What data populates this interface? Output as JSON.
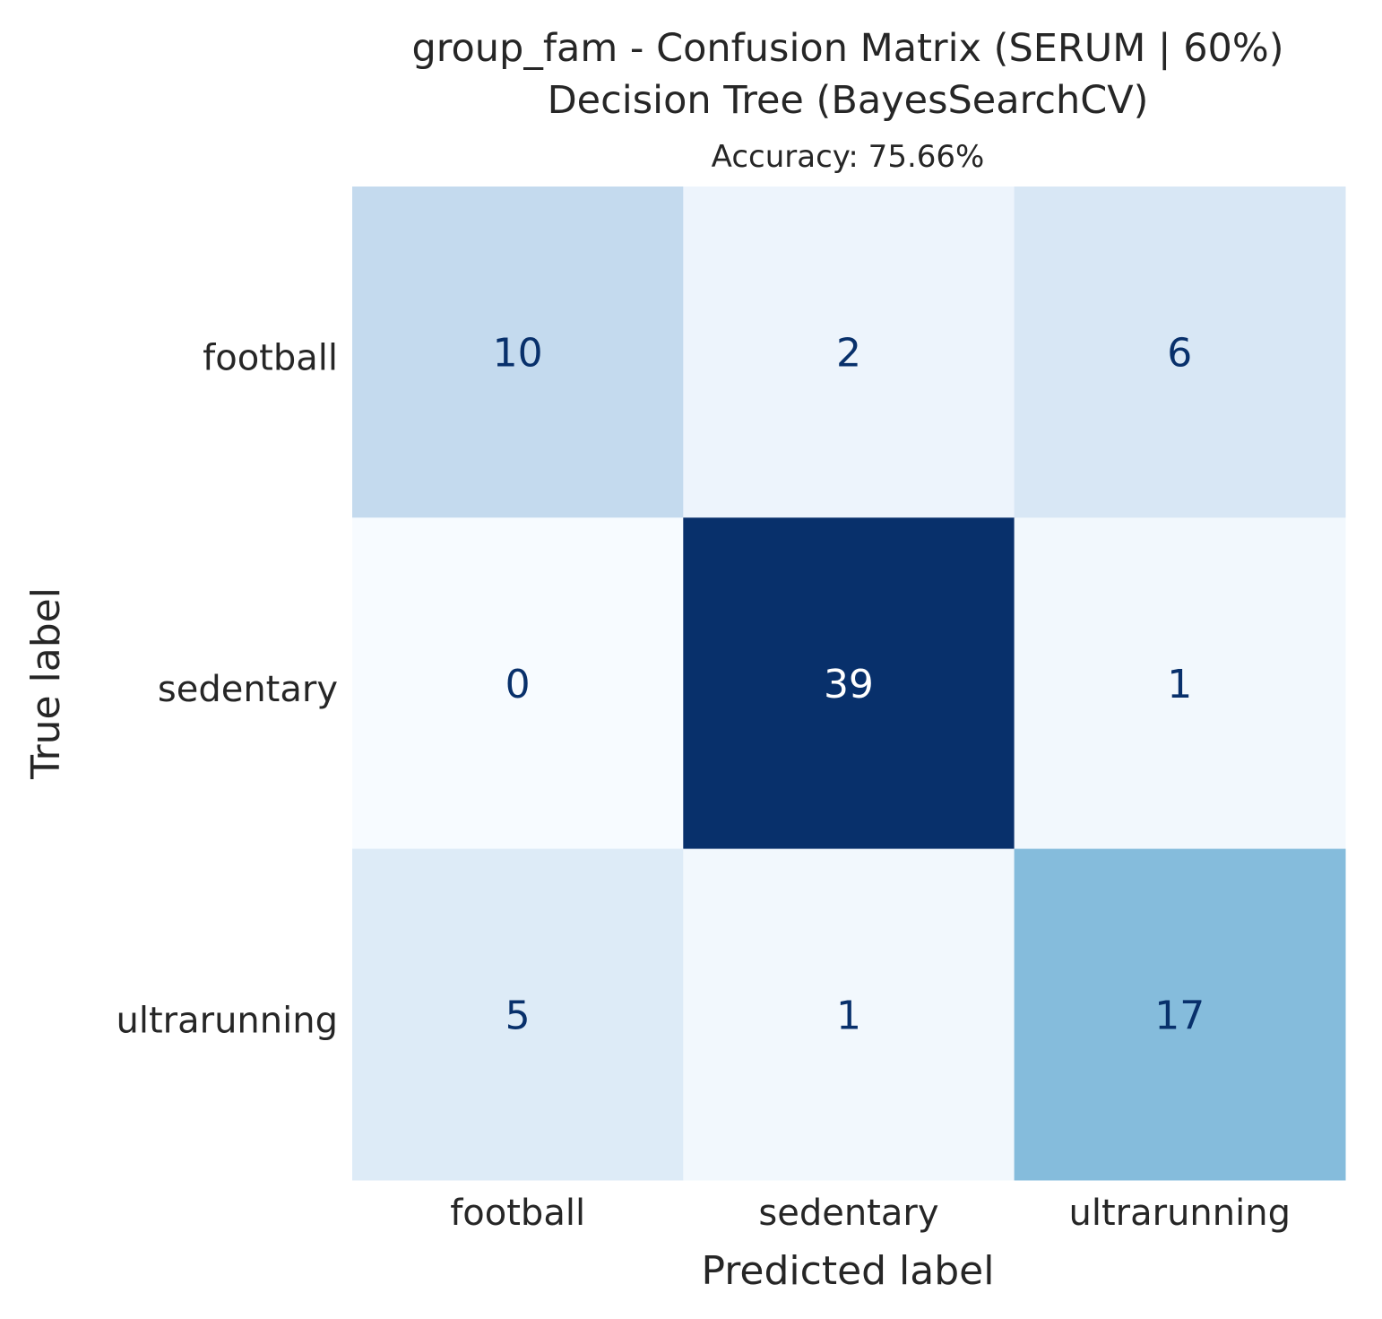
{
  "chart_data": {
    "type": "heatmap",
    "title": "group_fam - Confusion Matrix (SERUM | 60%)",
    "title_line2": "Decision Tree (BayesSearchCV)",
    "subtitle": "Accuracy: 75.66%",
    "xlabel": "Predicted label",
    "ylabel": "True label",
    "x_categories": [
      "football",
      "sedentary",
      "ultrarunning"
    ],
    "y_categories": [
      "football",
      "sedentary",
      "ultrarunning"
    ],
    "values": [
      [
        10,
        2,
        6
      ],
      [
        0,
        39,
        1
      ],
      [
        5,
        1,
        17
      ]
    ],
    "colormap": "Blues",
    "colorbar": false,
    "grid": false,
    "colors": {
      "low": "#f7fbff",
      "high": "#08306b",
      "text_dark": "#08306b",
      "text_light": "#ffffff"
    }
  }
}
